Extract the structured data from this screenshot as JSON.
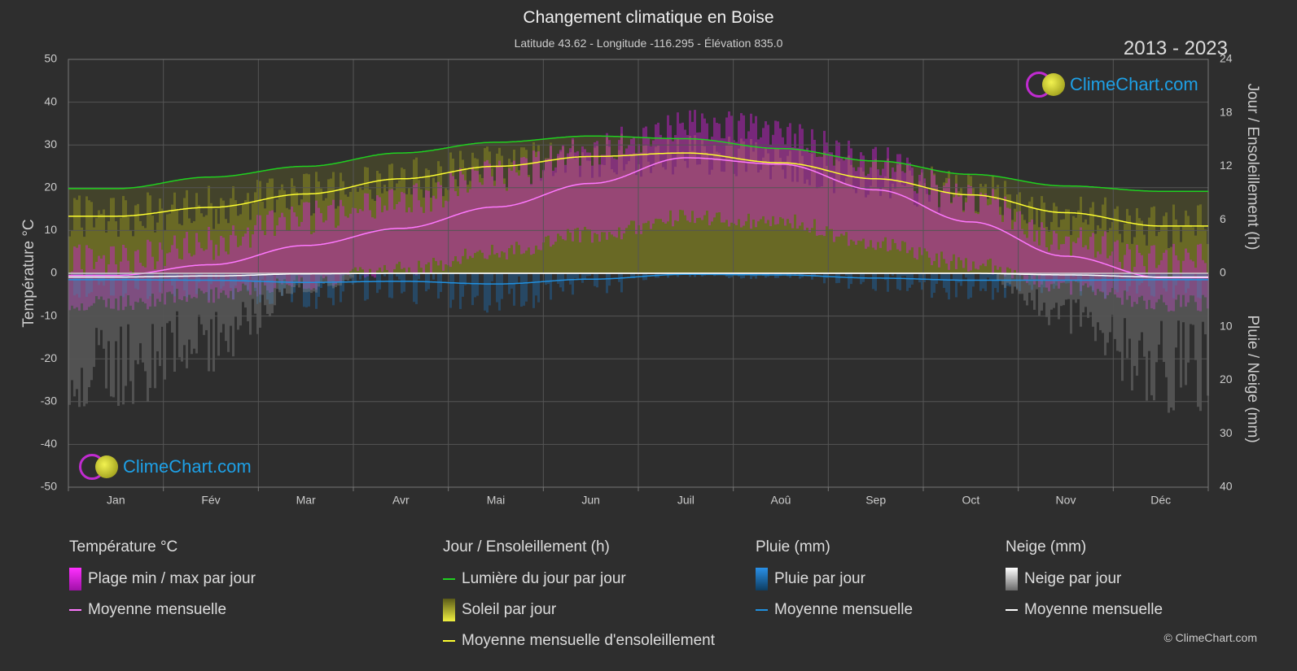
{
  "header": {
    "title": "Changement climatique en Boise",
    "subtitle": "Latitude 43.62 - Longitude -116.295 - Élévation 835.0",
    "years": "2013 - 2023"
  },
  "logo_text": "ClimeChart.com",
  "copyright": "© ClimeChart.com",
  "legend": {
    "temperature": {
      "heading": "Température °C",
      "range": "Plage min / max par jour",
      "mean": "Moyenne mensuelle"
    },
    "sun": {
      "heading": "Jour / Ensoleillement (h)",
      "daylight": "Lumière du jour par jour",
      "sunshine": "Soleil par jour",
      "mean": "Moyenne mensuelle d'ensoleillement"
    },
    "rain": {
      "heading": "Pluie (mm)",
      "daily": "Pluie par jour",
      "mean": "Moyenne mensuelle"
    },
    "snow": {
      "heading": "Neige (mm)",
      "daily": "Neige par jour",
      "mean": "Moyenne mensuelle"
    }
  },
  "colors": {
    "background": "#2e2e2e",
    "temp_range": "#d020d8",
    "temp_mean": "#ff78ff",
    "daylight": "#20d020",
    "sunshine_fill": "#9a9a20",
    "sunshine_mean": "#ffff30",
    "rain": "#1a78c8",
    "rain_mean": "#2090e0",
    "snow": "#8a8a8a",
    "snow_mean": "#ffffff"
  },
  "chart_data": {
    "type": "area",
    "categories": [
      "Jan",
      "Fév",
      "Mar",
      "Avr",
      "Mai",
      "Jun",
      "Juil",
      "Aoû",
      "Sep",
      "Oct",
      "Nov",
      "Déc"
    ],
    "left_axis": {
      "label": "Température °C",
      "min": -50,
      "max": 50,
      "ticks": [
        50,
        40,
        30,
        20,
        10,
        0,
        -10,
        -20,
        -30,
        -40,
        -50
      ]
    },
    "right_axis_top": {
      "label": "Jour / Ensoleillement (h)",
      "min": 0,
      "max": 24,
      "ticks": [
        24,
        18,
        12,
        6,
        0
      ]
    },
    "right_axis_bottom": {
      "label": "Pluie / Neige (mm)",
      "min": 0,
      "max": 40,
      "ticks": [
        0,
        10,
        20,
        30,
        40
      ]
    },
    "grid": true,
    "series": [
      {
        "name": "Moyenne mensuelle",
        "kind": "temp_mean",
        "unit": "°C",
        "values": [
          -0.5,
          2,
          6.5,
          10.5,
          15.5,
          21,
          27,
          25.5,
          19.5,
          12,
          4,
          -1
        ]
      },
      {
        "kind": "temp_max",
        "unit": "°C",
        "values": [
          3,
          7,
          13,
          17,
          23,
          29,
          35,
          33,
          26,
          17,
          8,
          3
        ]
      },
      {
        "kind": "temp_min",
        "unit": "°C",
        "values": [
          -5,
          -3,
          0,
          3,
          7,
          11,
          15,
          14,
          9,
          4,
          -1,
          -5
        ]
      },
      {
        "name": "Lumière du jour par jour",
        "kind": "daylight",
        "unit": "h",
        "values": [
          9.5,
          10.8,
          12.0,
          13.5,
          14.7,
          15.4,
          15.1,
          14.0,
          12.6,
          11.1,
          9.8,
          9.2
        ]
      },
      {
        "name": "Moyenne mensuelle d'ensoleillement",
        "kind": "sunshine_mean",
        "unit": "h",
        "values": [
          6.4,
          7.4,
          8.9,
          10.6,
          12.0,
          13.1,
          13.5,
          12.4,
          10.6,
          8.8,
          6.8,
          5.3
        ]
      },
      {
        "name": "Moyenne mensuelle",
        "kind": "rain_mean",
        "unit": "mm",
        "values": [
          1.2,
          1.3,
          1.7,
          1.5,
          2.0,
          1.1,
          0.2,
          0.3,
          0.9,
          1.3,
          1.3,
          1.2
        ]
      },
      {
        "name": "Moyenne mensuelle",
        "kind": "snow_mean",
        "unit": "mm",
        "values": [
          0.7,
          0.5,
          0.1,
          0,
          0,
          0,
          0,
          0,
          0,
          0,
          0.3,
          0.7
        ]
      }
    ]
  }
}
